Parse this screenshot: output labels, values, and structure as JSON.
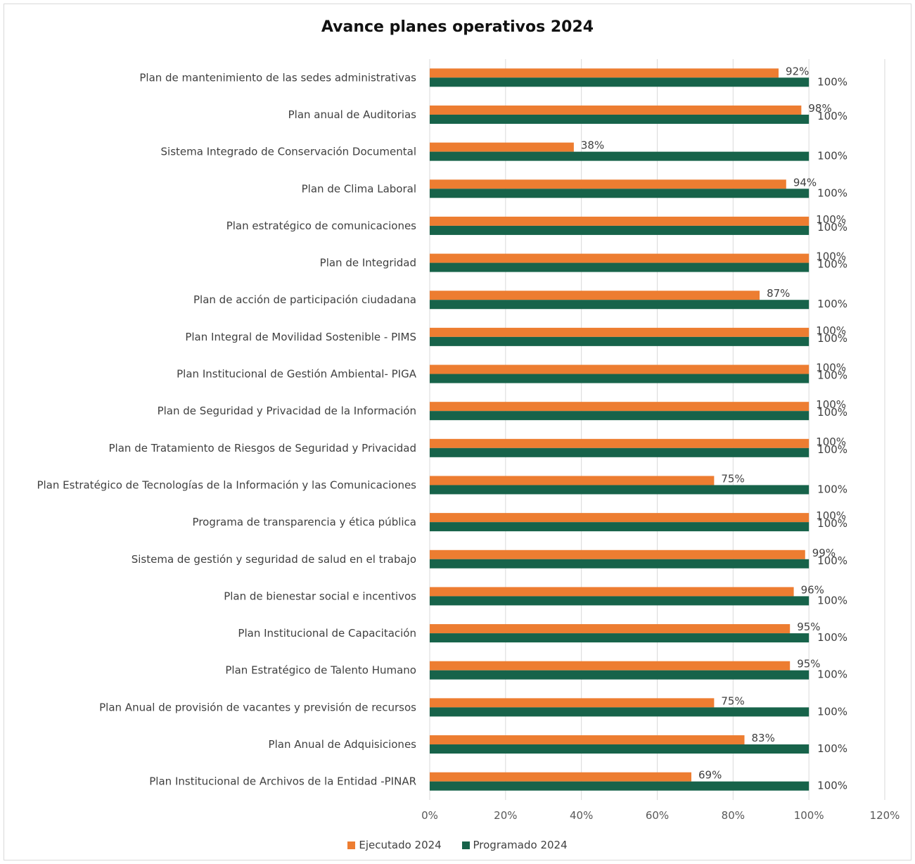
{
  "chart_data": {
    "type": "bar",
    "orientation": "horizontal",
    "title": "Avance planes operativos 2024",
    "categories": [
      "Plan de mantenimiento de las sedes administrativas",
      "Plan anual de Auditorias",
      "Sistema Integrado de Conservación Documental",
      "Plan de Clima Laboral",
      "Plan estratégico de comunicaciones",
      "Plan de Integridad",
      "Plan de acción de participación ciudadana",
      "Plan Integral de Movilidad Sostenible - PIMS",
      "Plan Institucional de Gestión Ambiental- PIGA",
      "Plan de Seguridad y Privacidad de la Información",
      "Plan de Tratamiento de Riesgos de Seguridad y Privacidad",
      "Plan Estratégico de Tecnologías de la Información y las Comunicaciones",
      "Programa de transparencia y ética pública",
      "Sistema de gestión y seguridad de salud en el trabajo",
      "Plan de bienestar social e incentivos ",
      "Plan Institucional de Capacitación",
      "Plan Estratégico de Talento Humano",
      "Plan Anual de provisión de vacantes y previsión de recursos ",
      "Plan Anual de Adquisiciones",
      "Plan Institucional de Archivos de la Entidad -PINAR"
    ],
    "series": [
      {
        "name": "Ejecutado 2024",
        "color": "#ED7D31",
        "values": [
          92,
          98,
          38,
          94,
          100,
          100,
          87,
          100,
          100,
          100,
          100,
          75,
          100,
          99,
          96,
          95,
          95,
          75,
          83,
          69
        ],
        "labels": [
          "92%",
          "98%",
          "38%",
          "94%",
          "100%",
          "100%",
          "87%",
          "100%",
          "100%",
          "100%",
          "100%",
          "75%",
          "100%",
          "99%",
          "96%",
          "95%",
          "95%",
          "75%",
          "83%",
          "69%"
        ]
      },
      {
        "name": "Programado 2024",
        "color": "#17634A",
        "values": [
          100,
          100,
          100,
          100,
          100,
          100,
          100,
          100,
          100,
          100,
          100,
          100,
          100,
          100,
          100,
          100,
          100,
          100,
          100,
          100
        ],
        "labels": [
          "100%",
          "100%",
          "100%",
          "100%",
          "100%",
          "100%",
          "100%",
          "100%",
          "100%",
          "100%",
          "100%",
          "100%",
          "100%",
          "100%",
          "100%",
          "100%",
          "100%",
          "100%",
          "100%",
          "100%"
        ]
      }
    ],
    "xlim": [
      0,
      120
    ],
    "xticks": [
      0,
      20,
      40,
      60,
      80,
      100,
      120
    ],
    "xtick_labels": [
      "0%",
      "20%",
      "40%",
      "60%",
      "80%",
      "100%",
      "120%"
    ],
    "grid": true,
    "legend_position": "bottom"
  }
}
